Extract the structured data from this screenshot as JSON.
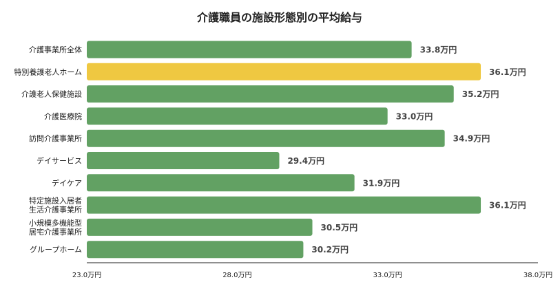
{
  "chart_data": {
    "type": "bar",
    "orientation": "horizontal",
    "title": "介護職員の施設形態別の平均給与",
    "xlabel": "",
    "ylabel": "",
    "xlim": [
      23.0,
      38.0
    ],
    "ticks": [
      {
        "value": 23.0,
        "label": "23.0万円"
      },
      {
        "value": 28.0,
        "label": "28.0万円"
      },
      {
        "value": 33.0,
        "label": "33.0万円"
      },
      {
        "value": 38.0,
        "label": "38.0万円"
      }
    ],
    "grid": false,
    "colors": {
      "default": "#62a163",
      "highlight": "#efc841"
    },
    "bars": [
      {
        "category": [
          "介護事業所全体"
        ],
        "value": 33.8,
        "label": "33.8万円",
        "highlight": false
      },
      {
        "category": [
          "特別養護老人ホーム"
        ],
        "value": 36.1,
        "label": "36.1万円",
        "highlight": true
      },
      {
        "category": [
          "介護老人保健施設"
        ],
        "value": 35.2,
        "label": "35.2万円",
        "highlight": false
      },
      {
        "category": [
          "介護医療院"
        ],
        "value": 33.0,
        "label": "33.0万円",
        "highlight": false
      },
      {
        "category": [
          "訪問介護事業所"
        ],
        "value": 34.9,
        "label": "34.9万円",
        "highlight": false
      },
      {
        "category": [
          "デイサービス"
        ],
        "value": 29.4,
        "label": "29.4万円",
        "highlight": false
      },
      {
        "category": [
          "デイケア"
        ],
        "value": 31.9,
        "label": "31.9万円",
        "highlight": false
      },
      {
        "category": [
          "特定施設入居者",
          "生活介護事業所"
        ],
        "value": 36.1,
        "label": "36.1万円",
        "highlight": false
      },
      {
        "category": [
          "小規模多機能型",
          "居宅介護事業所"
        ],
        "value": 30.5,
        "label": "30.5万円",
        "highlight": false
      },
      {
        "category": [
          "グループホーム"
        ],
        "value": 30.2,
        "label": "30.2万円",
        "highlight": false
      }
    ]
  }
}
